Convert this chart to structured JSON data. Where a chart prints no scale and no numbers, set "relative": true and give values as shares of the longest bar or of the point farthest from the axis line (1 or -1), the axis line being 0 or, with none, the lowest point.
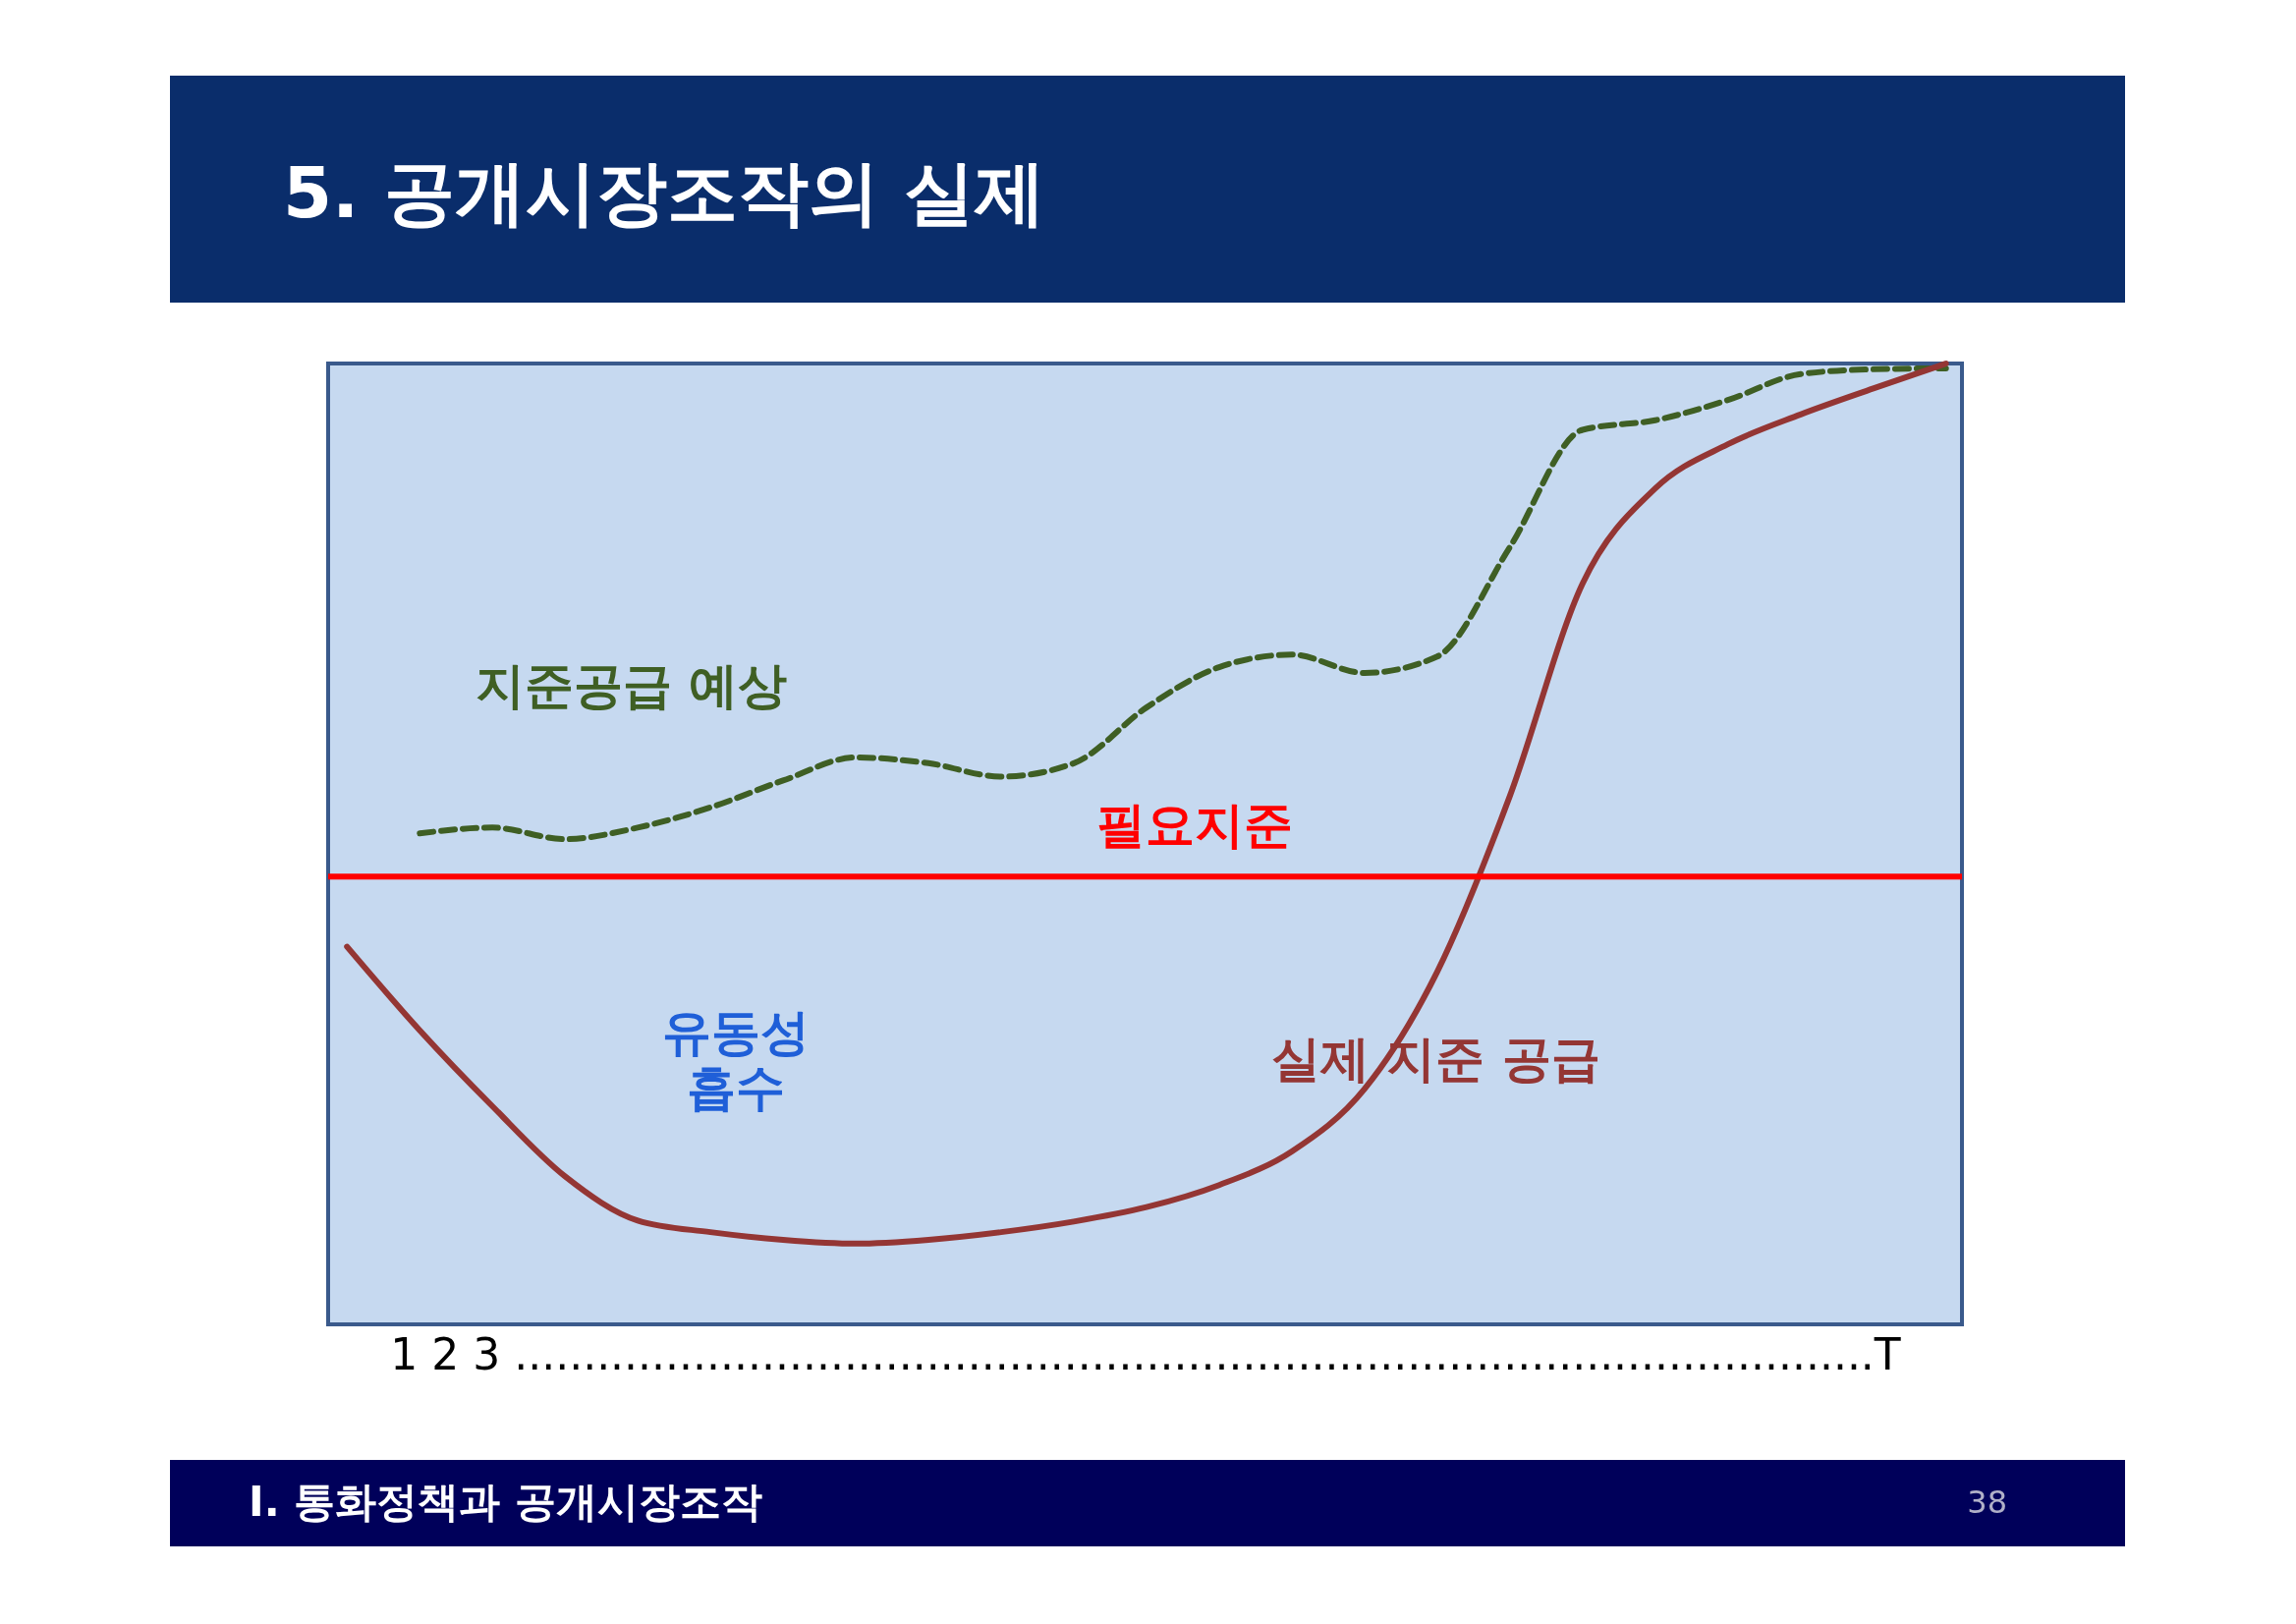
{
  "chart_data": {
    "type": "line",
    "title": "5. 공개시장조작의 실제",
    "xlabel": "1 2 3 ...................................................................................................T",
    "relative": true,
    "categories": [
      null,
      null,
      null,
      null,
      null,
      null,
      null,
      null,
      null,
      null,
      null,
      null,
      null,
      null,
      null,
      null,
      null,
      null,
      null,
      null,
      null,
      null,
      null
    ],
    "series": [
      {
        "name": "지준공급 예상",
        "color": "#3f5f24",
        "line_style": "dashed",
        "values": [
          null,
          0.511,
          0.517,
          0.505,
          0.517,
          0.538,
          0.566,
          0.59,
          0.584,
          0.57,
          0.584,
          0.642,
          0.684,
          0.697,
          0.678,
          0.695,
          0.809,
          0.931,
          0.941,
          0.962,
          0.989,
          0.994,
          0.995
        ]
      },
      {
        "name": "실제 지준 공급",
        "color": "#943634",
        "line_style": "solid",
        "values": [
          0.393,
          0.306,
          0.227,
          0.154,
          0.108,
          0.096,
          0.088,
          0.084,
          0.088,
          0.096,
          0.107,
          0.122,
          0.145,
          0.18,
          0.245,
          0.367,
          0.55,
          0.771,
          0.87,
          0.916,
          0.947,
          0.974,
          1.0
        ]
      }
    ],
    "ref_lines": [
      {
        "axis": "y",
        "value": 0.466,
        "label": "필요지준",
        "color": "#ff0000"
      }
    ],
    "annotations": [
      "유동성\n흡수",
      "Ⅰ. 통화정책과 공개시장조작",
      "38"
    ]
  }
}
